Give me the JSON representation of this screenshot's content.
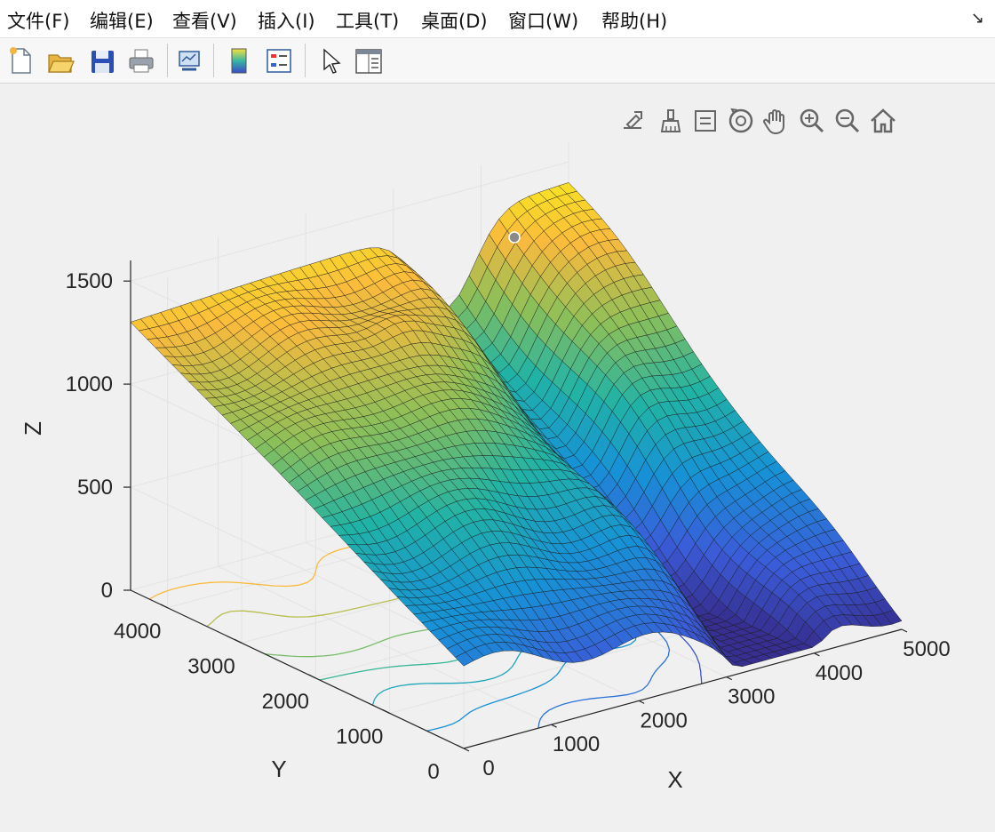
{
  "menubar": {
    "items": [
      {
        "label": "文件(F)"
      },
      {
        "label": "编辑(E)"
      },
      {
        "label": "查看(V)"
      },
      {
        "label": "插入(I)"
      },
      {
        "label": "工具(T)"
      },
      {
        "label": "桌面(D)"
      },
      {
        "label": "窗口(W)"
      },
      {
        "label": "帮助(H)"
      }
    ]
  },
  "toolbar": {
    "buttons": [
      "new-figure-icon",
      "open-file-icon",
      "save-icon",
      "print-icon",
      "link-plot-icon",
      "insert-colorbar-icon",
      "insert-legend-icon",
      "edit-plot-cursor-icon",
      "property-inspector-icon"
    ]
  },
  "axes_toolbar": {
    "buttons": [
      "export-icon",
      "brush-icon",
      "data-tips-icon",
      "rotate-3d-icon",
      "pan-icon",
      "zoom-in-icon",
      "zoom-out-icon",
      "home-icon"
    ]
  },
  "chart_data": {
    "type": "surface",
    "xlabel": "X",
    "ylabel": "Y",
    "zlabel": "Z",
    "xticks": [
      "0",
      "1000",
      "2000",
      "3000",
      "4000",
      "5000"
    ],
    "yticks": [
      "0",
      "1000",
      "2000",
      "3000",
      "4000"
    ],
    "zticks": [
      "0",
      "500",
      "1000",
      "1500"
    ],
    "xlim": [
      0,
      5000
    ],
    "ylim": [
      0,
      4500
    ],
    "zlim": [
      0,
      1600
    ],
    "colormap": "parula",
    "grid": "on",
    "contour_on_base": true,
    "corner_heights": {
      "x0_y0": 400,
      "x5000_y0": 80,
      "x0_y4500": 1300,
      "x5000_y4500": 1400
    }
  }
}
